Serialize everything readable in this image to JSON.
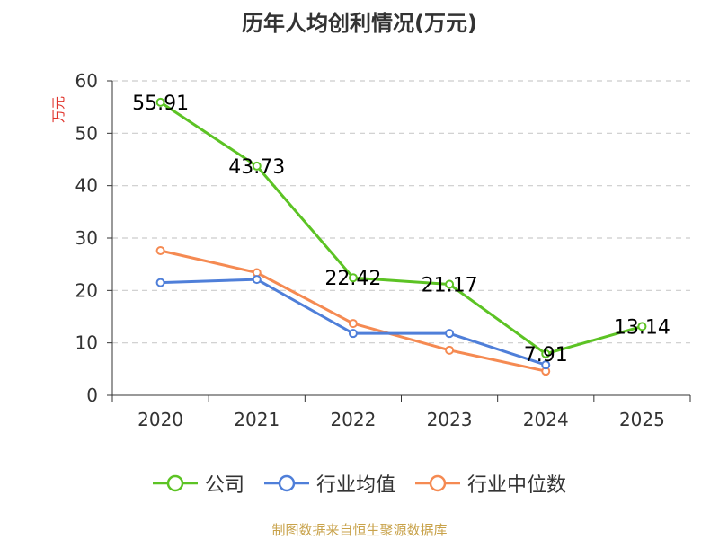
{
  "chart_data": {
    "type": "line",
    "title": "历年人均创利情况(万元)",
    "ylabel": "万元",
    "xlabel": "",
    "categories": [
      "2020",
      "2021",
      "2022",
      "2023",
      "2024",
      "2025"
    ],
    "ylim": [
      0,
      60
    ],
    "yticks": [
      0,
      10,
      20,
      30,
      40,
      50,
      60
    ],
    "grid": true,
    "legend_position": "bottom",
    "series": [
      {
        "name": "公司",
        "color": "#5cc324",
        "values": [
          55.91,
          43.73,
          22.42,
          21.17,
          7.91,
          13.14
        ],
        "labels": [
          "55.91",
          "43.73",
          "22.42",
          "21.17",
          "7.91",
          "13.14"
        ]
      },
      {
        "name": "行业均值",
        "color": "#4f7fd9",
        "values": [
          21.5,
          22.1,
          11.8,
          11.8,
          5.8,
          null
        ]
      },
      {
        "name": "行业中位数",
        "color": "#f58a52",
        "values": [
          27.6,
          23.4,
          13.7,
          8.6,
          4.6,
          null
        ]
      }
    ]
  },
  "footer": {
    "source": "制图数据来自恒生聚源数据库"
  }
}
